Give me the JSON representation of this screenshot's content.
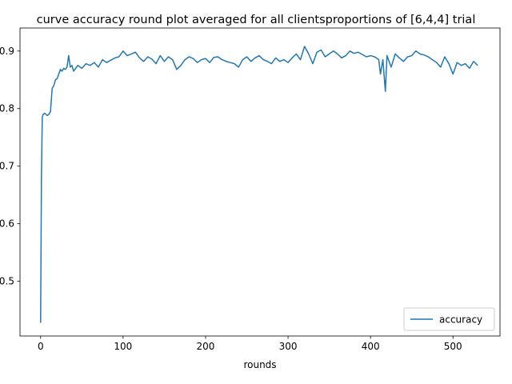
{
  "chart_data": {
    "type": "line",
    "title": "curve accuracy round plot averaged for all clientsproportions of [6,4,4] trial",
    "xlabel": "rounds",
    "ylabel": "",
    "xlim": [
      -25,
      557
    ],
    "ylim": [
      0.405,
      0.94
    ],
    "x_ticks": [
      0,
      100,
      200,
      300,
      400,
      500
    ],
    "x_tick_labels": [
      "0",
      "100",
      "200",
      "300",
      "400",
      "500"
    ],
    "y_ticks": [
      0.5,
      0.6,
      0.7,
      0.8,
      0.9
    ],
    "y_tick_labels": [
      "0.5",
      "0.6",
      "0.7",
      "0.8",
      "0.9"
    ],
    "grid": false,
    "legend_position": "lower-right",
    "series": [
      {
        "name": "accuracy",
        "color": "#1f77b4",
        "x": [
          0,
          1,
          2,
          3,
          5,
          8,
          10,
          12,
          14,
          16,
          18,
          20,
          22,
          24,
          26,
          28,
          30,
          32,
          34,
          36,
          38,
          40,
          45,
          50,
          55,
          60,
          65,
          70,
          75,
          80,
          85,
          90,
          95,
          100,
          105,
          110,
          115,
          120,
          125,
          130,
          135,
          140,
          145,
          150,
          155,
          160,
          165,
          170,
          175,
          180,
          185,
          190,
          195,
          200,
          205,
          210,
          215,
          220,
          225,
          230,
          235,
          240,
          245,
          250,
          255,
          260,
          265,
          270,
          275,
          280,
          285,
          290,
          295,
          300,
          305,
          310,
          315,
          320,
          325,
          330,
          335,
          340,
          345,
          350,
          355,
          360,
          365,
          370,
          375,
          380,
          385,
          390,
          395,
          400,
          405,
          410,
          412,
          415,
          418,
          420,
          425,
          430,
          435,
          440,
          445,
          450,
          455,
          460,
          465,
          470,
          475,
          480,
          485,
          490,
          495,
          500,
          505,
          510,
          515,
          520,
          525,
          530
        ],
        "y": [
          0.428,
          0.68,
          0.785,
          0.79,
          0.792,
          0.788,
          0.79,
          0.795,
          0.835,
          0.84,
          0.85,
          0.852,
          0.86,
          0.868,
          0.865,
          0.87,
          0.868,
          0.872,
          0.892,
          0.872,
          0.875,
          0.865,
          0.875,
          0.87,
          0.878,
          0.875,
          0.88,
          0.872,
          0.885,
          0.88,
          0.884,
          0.888,
          0.89,
          0.9,
          0.892,
          0.895,
          0.898,
          0.888,
          0.882,
          0.89,
          0.886,
          0.878,
          0.892,
          0.882,
          0.89,
          0.885,
          0.868,
          0.875,
          0.885,
          0.89,
          0.887,
          0.88,
          0.885,
          0.887,
          0.88,
          0.889,
          0.89,
          0.885,
          0.882,
          0.88,
          0.878,
          0.872,
          0.885,
          0.89,
          0.882,
          0.888,
          0.892,
          0.885,
          0.882,
          0.878,
          0.888,
          0.882,
          0.885,
          0.88,
          0.888,
          0.895,
          0.885,
          0.908,
          0.895,
          0.878,
          0.898,
          0.902,
          0.89,
          0.895,
          0.9,
          0.895,
          0.888,
          0.892,
          0.9,
          0.896,
          0.898,
          0.894,
          0.89,
          0.892,
          0.89,
          0.885,
          0.86,
          0.885,
          0.83,
          0.892,
          0.872,
          0.895,
          0.888,
          0.882,
          0.89,
          0.892,
          0.9,
          0.895,
          0.893,
          0.89,
          0.885,
          0.88,
          0.872,
          0.89,
          0.878,
          0.86,
          0.88,
          0.875,
          0.878,
          0.87,
          0.882,
          0.875
        ]
      }
    ]
  }
}
